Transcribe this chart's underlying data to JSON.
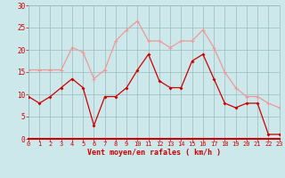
{
  "x": [
    0,
    1,
    2,
    3,
    4,
    5,
    6,
    7,
    8,
    9,
    10,
    11,
    12,
    13,
    14,
    15,
    16,
    17,
    18,
    19,
    20,
    21,
    22,
    23
  ],
  "wind_avg": [
    9.5,
    8,
    9.5,
    11.5,
    13.5,
    11.5,
    3,
    9.5,
    9.5,
    11.5,
    15.5,
    19,
    13,
    11.5,
    11.5,
    17.5,
    19,
    13.5,
    8,
    7,
    8,
    8,
    1,
    1
  ],
  "wind_gust": [
    15.5,
    15.5,
    15.5,
    15.5,
    20.5,
    19.5,
    13.5,
    15.5,
    22,
    24.5,
    26.5,
    22,
    22,
    20.5,
    22,
    22,
    24.5,
    20.5,
    15,
    11.5,
    9.5,
    9.5,
    8,
    7
  ],
  "bg_color": "#cce8ea",
  "grid_color": "#99bbbb",
  "line_avg_color": "#cc0000",
  "line_gust_color": "#ee9999",
  "xlabel": "Vent moyen/en rafales ( km/h )",
  "yticks": [
    0,
    5,
    10,
    15,
    20,
    25,
    30
  ],
  "ylim": [
    0,
    30
  ],
  "xlim": [
    0,
    23
  ]
}
